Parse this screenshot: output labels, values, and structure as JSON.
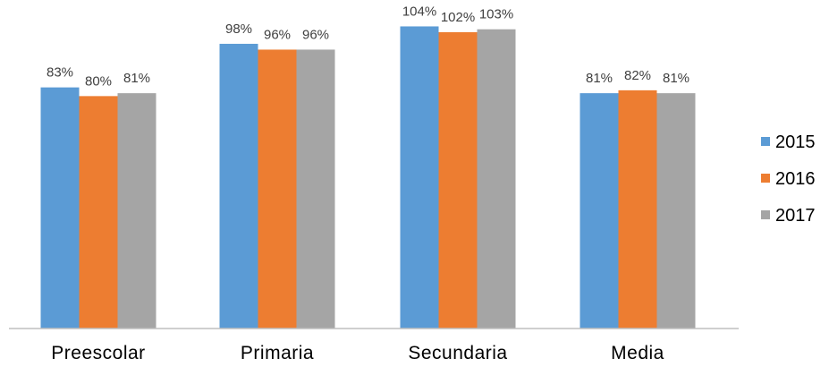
{
  "chart_data": {
    "type": "bar",
    "categories": [
      "Preescolar",
      "Primaria",
      "Secundaria",
      "Media"
    ],
    "series": [
      {
        "name": "2015",
        "values": [
          83,
          98,
          104,
          81
        ],
        "labels": [
          "83%",
          "98%",
          "104%",
          "81%"
        ],
        "color": "#5B9BD5"
      },
      {
        "name": "2016",
        "values": [
          80,
          96,
          102,
          82
        ],
        "labels": [
          "80%",
          "96%",
          "102%",
          "82%"
        ],
        "color": "#ED7D31"
      },
      {
        "name": "2017",
        "values": [
          81,
          96,
          103,
          81
        ],
        "labels": [
          "81%",
          "96%",
          "103%",
          "81%"
        ],
        "color": "#A5A5A5"
      }
    ],
    "value_unit": "%",
    "ylim": [
      0,
      110
    ],
    "grid": false,
    "legend_position": "right",
    "axis_line_color": "#BFBFBF"
  }
}
